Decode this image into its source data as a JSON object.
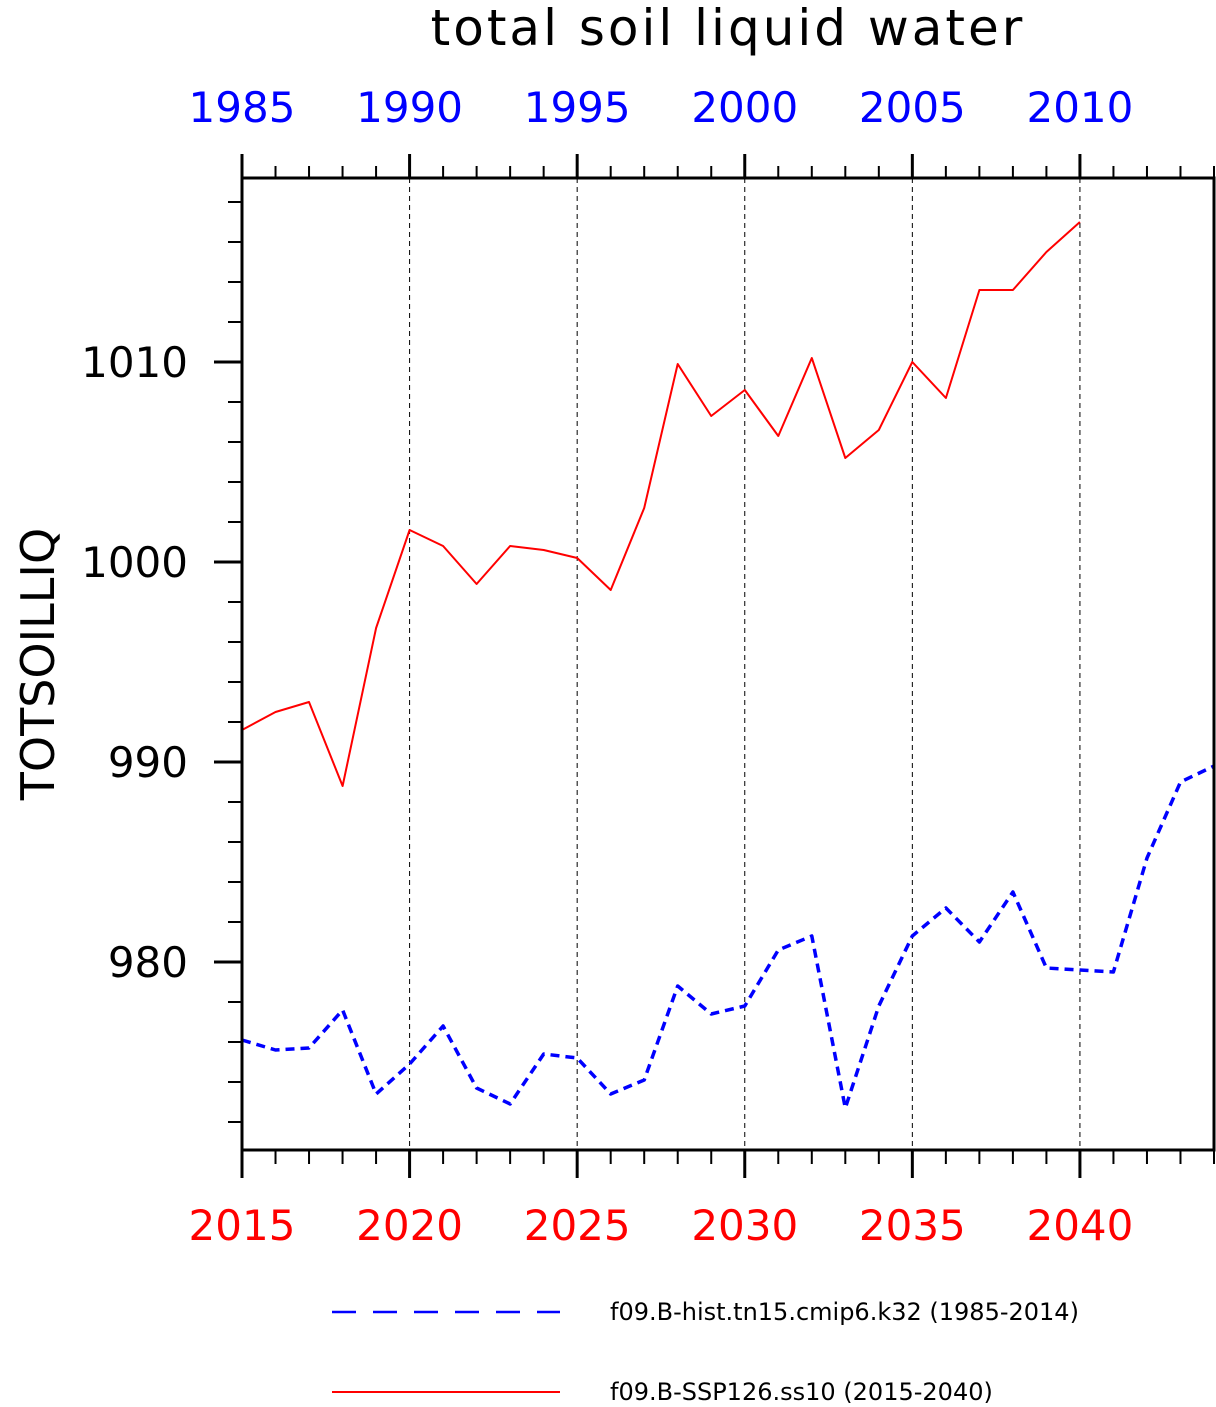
{
  "chart_data": {
    "type": "line",
    "title": "total soil liquid water",
    "ylabel": "TOTSOILLIQ",
    "ylim": [
      970.6,
      1019.2
    ],
    "yticks": [
      980,
      990,
      1000,
      1010
    ],
    "ytick_labels": [
      "980",
      "990",
      "1000",
      "1010"
    ],
    "grid": "vertical dashed at major x ticks",
    "legend_position": "bottom",
    "x_bottom": {
      "range": [
        2015,
        2044
      ],
      "ticks": [
        2015,
        2020,
        2025,
        2030,
        2035,
        2040
      ],
      "tick_labels": [
        "2015",
        "2020",
        "2025",
        "2030",
        "2035",
        "2040"
      ],
      "color": "#ff0000"
    },
    "x_top": {
      "range": [
        1985,
        2014
      ],
      "ticks": [
        1985,
        1990,
        1995,
        2000,
        2005,
        2010
      ],
      "tick_labels": [
        "1985",
        "1990",
        "1995",
        "2000",
        "2005",
        "2010"
      ],
      "color": "#0000ff"
    },
    "series": [
      {
        "name": "f09.B-hist.tn15.cmip6.k32 (1985-2014)",
        "axis": "top",
        "color": "#0000ff",
        "style": "dashed",
        "x": [
          1985,
          1986,
          1987,
          1988,
          1989,
          1990,
          1991,
          1992,
          1993,
          1994,
          1995,
          1996,
          1997,
          1998,
          1999,
          2000,
          2001,
          2002,
          2003,
          2004,
          2005,
          2006,
          2007,
          2008,
          2009,
          2010,
          2011,
          2012,
          2013,
          2014
        ],
        "values": [
          976.1,
          975.6,
          975.7,
          977.6,
          973.4,
          974.9,
          976.8,
          973.7,
          972.9,
          975.4,
          975.2,
          973.4,
          974.1,
          978.8,
          977.4,
          977.8,
          980.6,
          981.3,
          972.7,
          977.8,
          981.3,
          982.7,
          981.0,
          983.5,
          979.7,
          979.6,
          979.5,
          985.2,
          989.0,
          989.8
        ]
      },
      {
        "name": "f09.B-SSP126.ss10 (2015-2040)",
        "axis": "bottom",
        "color": "#ff0000",
        "style": "solid",
        "x": [
          2015,
          2016,
          2017,
          2018,
          2019,
          2020,
          2021,
          2022,
          2023,
          2024,
          2025,
          2026,
          2027,
          2028,
          2029,
          2030,
          2031,
          2032,
          2033,
          2034,
          2035,
          2036,
          2037,
          2038,
          2039,
          2040
        ],
        "values": [
          991.6,
          992.5,
          993.0,
          988.8,
          996.7,
          1001.6,
          1000.8,
          998.9,
          1000.8,
          1000.6,
          1000.2,
          998.6,
          1002.7,
          1009.9,
          1007.3,
          1008.6,
          1006.3,
          1010.2,
          1005.2,
          1006.6,
          1010.0,
          1008.2,
          1013.6,
          1013.6,
          1015.5,
          1017.0
        ]
      }
    ]
  }
}
